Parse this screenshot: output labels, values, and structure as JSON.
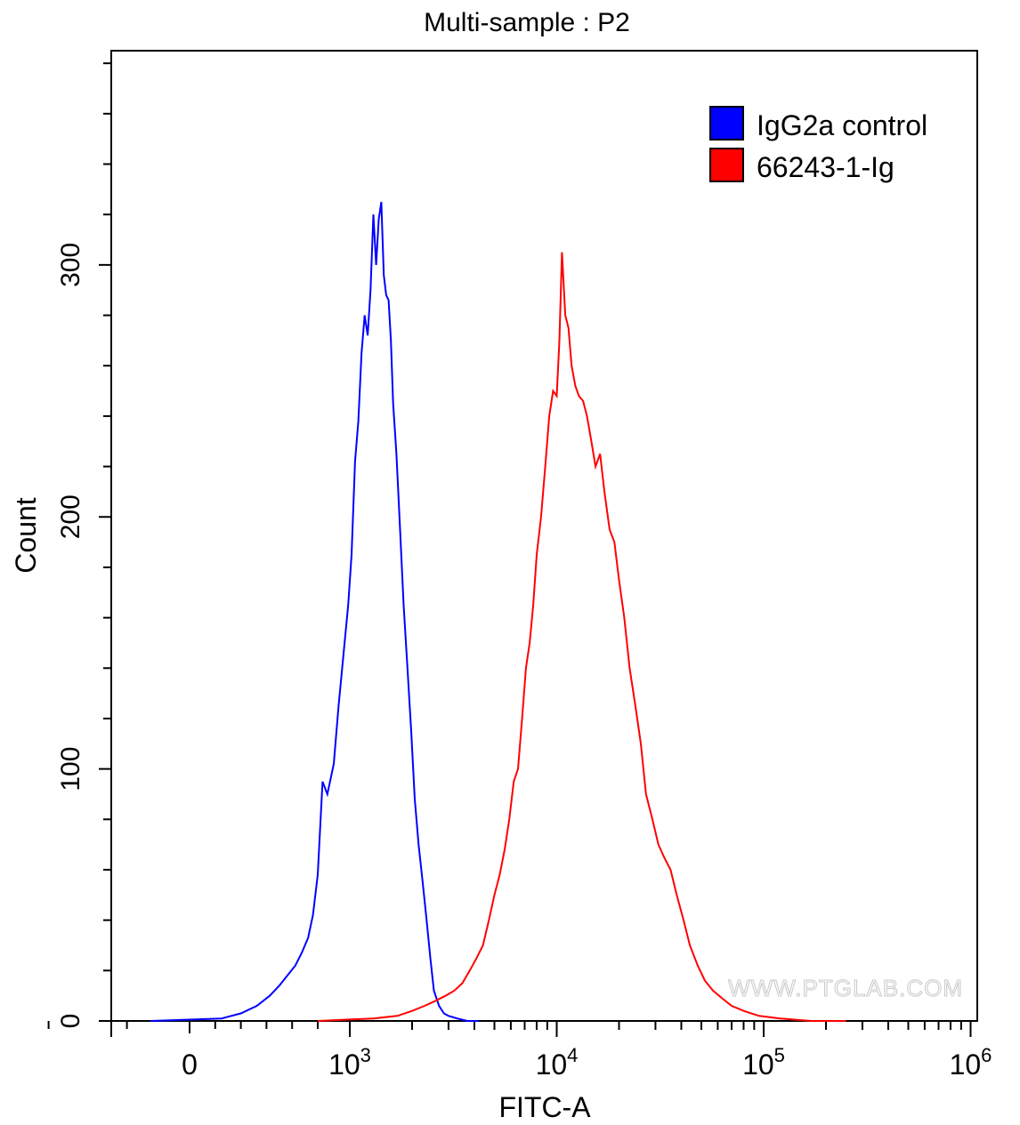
{
  "chart_data": {
    "type": "line",
    "title": "Multi-sample : P2",
    "xlabel": "FITC-A",
    "ylabel": "Count",
    "x_scale": "biexponential-log",
    "xlim": [
      -200,
      1000000
    ],
    "ylim": [
      0,
      385
    ],
    "x_ticks": [
      {
        "value": 0,
        "base": "0",
        "exp": ""
      },
      {
        "value": 1000,
        "base": "10",
        "exp": "3"
      },
      {
        "value": 10000,
        "base": "10",
        "exp": "4"
      },
      {
        "value": 100000,
        "base": "10",
        "exp": "5"
      },
      {
        "value": 1000000,
        "base": "10",
        "exp": "6"
      }
    ],
    "y_ticks": [
      {
        "value": 0,
        "label": "0"
      },
      {
        "value": 100,
        "label": "100"
      },
      {
        "value": 200,
        "label": "200"
      },
      {
        "value": 300,
        "label": "300"
      }
    ],
    "legend_position": "top-right",
    "watermark": "WWW.PTGLAB.COM",
    "series": [
      {
        "name": "IgG2a control",
        "color": "#0000ff",
        "x": [
          -100,
          200,
          320,
          420,
          500,
          560,
          610,
          660,
          700,
          740,
          770,
          800,
          830,
          860,
          900,
          930,
          960,
          990,
          1020,
          1060,
          1100,
          1140,
          1180,
          1220,
          1260,
          1300,
          1340,
          1380,
          1420,
          1460,
          1500,
          1540,
          1580,
          1620,
          1680,
          1750,
          1820,
          1900,
          1980,
          2060,
          2150,
          2250,
          2350,
          2450,
          2550,
          2700,
          2850,
          3000,
          3300,
          3700,
          4200
        ],
        "y": [
          0,
          1,
          3,
          6,
          10,
          14,
          18,
          22,
          27,
          33,
          42,
          58,
          95,
          90,
          102,
          125,
          145,
          165,
          185,
          222,
          238,
          265,
          280,
          272,
          290,
          320,
          300,
          318,
          325,
          296,
          288,
          286,
          270,
          245,
          225,
          195,
          165,
          140,
          115,
          88,
          70,
          55,
          40,
          25,
          12,
          6,
          3,
          2,
          1,
          0,
          0
        ],
        "tick_labels": []
      },
      {
        "name": "66243-1-Ig",
        "color": "#ff0000",
        "x": [
          800,
          1300,
          1700,
          2000,
          2300,
          2600,
          2900,
          3200,
          3500,
          3800,
          4100,
          4400,
          4700,
          5000,
          5300,
          5600,
          5900,
          6200,
          6500,
          6800,
          7100,
          7400,
          7700,
          8000,
          8400,
          8800,
          9200,
          9600,
          10000,
          10300,
          10600,
          11000,
          11400,
          11800,
          12300,
          12800,
          13400,
          14000,
          14700,
          15400,
          16200,
          17000,
          18000,
          19000,
          20000,
          21200,
          22500,
          24000,
          25500,
          27000,
          29000,
          31000,
          33000,
          35500,
          38000,
          41000,
          44000,
          48000,
          52000,
          57000,
          63000,
          70000,
          80000,
          95000,
          120000,
          170000,
          250000
        ],
        "y": [
          0,
          1,
          2,
          4,
          6,
          8,
          10,
          12,
          15,
          20,
          25,
          30,
          40,
          50,
          58,
          68,
          80,
          95,
          100,
          120,
          140,
          150,
          165,
          185,
          200,
          220,
          240,
          250,
          248,
          270,
          305,
          280,
          275,
          260,
          252,
          248,
          246,
          240,
          230,
          220,
          225,
          210,
          195,
          190,
          175,
          160,
          140,
          125,
          110,
          90,
          80,
          70,
          65,
          60,
          50,
          40,
          30,
          22,
          16,
          12,
          9,
          6,
          4,
          2,
          1,
          0,
          0
        ],
        "tick_labels": []
      }
    ]
  }
}
